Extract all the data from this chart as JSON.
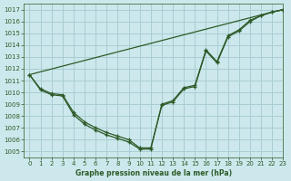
{
  "xlabel": "Graphe pression niveau de la mer (hPa)",
  "background_color": "#cce8ec",
  "grid_color": "#a8cdd2",
  "line_color": "#2d5a27",
  "text_color": "#2d5a27",
  "xlim": [
    -0.5,
    23
  ],
  "ylim": [
    1004.5,
    1017.5
  ],
  "yticks": [
    1005,
    1006,
    1007,
    1008,
    1009,
    1010,
    1011,
    1012,
    1013,
    1014,
    1015,
    1016,
    1017
  ],
  "xticks": [
    0,
    1,
    2,
    3,
    4,
    5,
    6,
    7,
    8,
    9,
    10,
    11,
    12,
    13,
    14,
    15,
    16,
    17,
    18,
    19,
    20,
    21,
    22,
    23
  ],
  "series_main": {
    "x": [
      0,
      1,
      2,
      3,
      4,
      5,
      6,
      7,
      8,
      9,
      10,
      11,
      12,
      13,
      14,
      15,
      16,
      17,
      18,
      19,
      20,
      21,
      22,
      23
    ],
    "y": [
      1011.5,
      1010.3,
      1009.9,
      1009.8,
      1008.3,
      1007.5,
      1007.0,
      1006.6,
      1006.3,
      1006.0,
      1005.3,
      1005.3,
      1008.9,
      1009.2,
      1010.3,
      1010.5,
      1013.5,
      1012.5,
      1014.7,
      1015.2,
      1016.0,
      1016.5,
      1016.8,
      1017.0
    ]
  },
  "series_alt": {
    "x": [
      0,
      1,
      2,
      3,
      4,
      5,
      6,
      7,
      8,
      9,
      10,
      11,
      12,
      13,
      14,
      15,
      16,
      17,
      18,
      19,
      20,
      21,
      22,
      23
    ],
    "y": [
      1011.5,
      1010.2,
      1009.8,
      1009.7,
      1008.1,
      1007.3,
      1006.8,
      1006.4,
      1006.1,
      1005.8,
      1005.2,
      1005.2,
      1009.0,
      1009.3,
      1010.4,
      1010.6,
      1013.6,
      1012.6,
      1014.8,
      1015.3,
      1016.1,
      1016.5,
      1016.8,
      1017.0
    ]
  },
  "series_straight": {
    "x": [
      0,
      22,
      23
    ],
    "y": [
      1011.5,
      1016.8,
      1017.0
    ]
  }
}
